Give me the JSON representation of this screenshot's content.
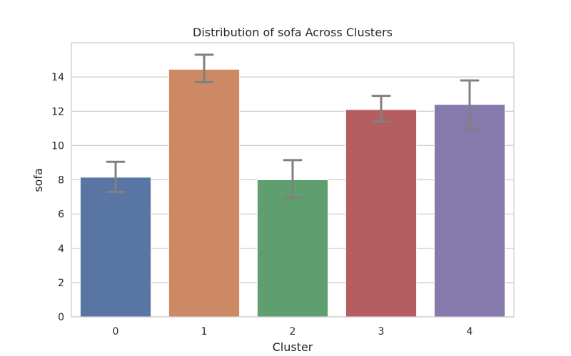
{
  "chart_data": {
    "type": "bar",
    "title": "Distribution of sofa Across Clusters",
    "xlabel": "Cluster",
    "ylabel": "sofa",
    "categories": [
      "0",
      "1",
      "2",
      "3",
      "4"
    ],
    "values": [
      8.15,
      14.45,
      8.0,
      12.1,
      12.4
    ],
    "error_low": [
      7.3,
      13.7,
      6.95,
      11.4,
      11.0
    ],
    "error_high": [
      9.05,
      15.3,
      9.15,
      12.9,
      13.8
    ],
    "colors": [
      "#5875a4",
      "#cc8963",
      "#5f9e6e",
      "#b55d60",
      "#857aab"
    ],
    "error_color": "#808080",
    "ylim": [
      0,
      16
    ],
    "yticks": [
      0,
      2,
      4,
      6,
      8,
      10,
      12,
      14
    ],
    "grid": true,
    "grid_color": "#cccccc"
  }
}
